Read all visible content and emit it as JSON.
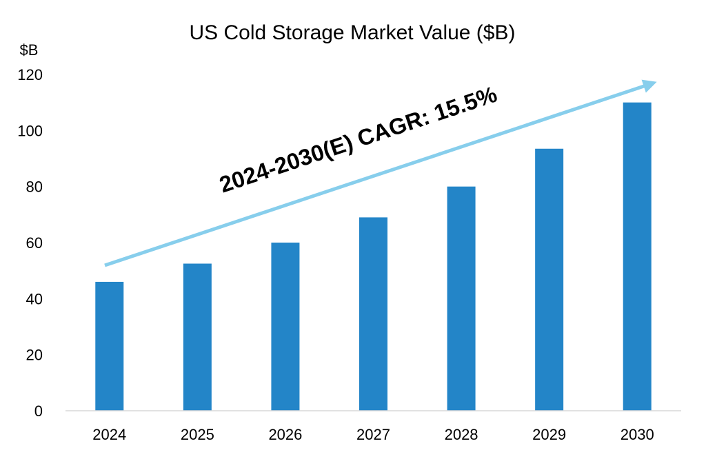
{
  "chart_data": {
    "type": "bar",
    "title": "US Cold Storage Market Value ($B)",
    "ylabel": "$B",
    "xlabel": "",
    "categories": [
      "2024",
      "2025",
      "2026",
      "2027",
      "2028",
      "2029",
      "2030"
    ],
    "values": [
      46,
      52.5,
      60,
      69,
      80,
      93.5,
      110
    ],
    "ylim": [
      0,
      120
    ],
    "yticks": [
      "0",
      "20",
      "40",
      "60",
      "80",
      "100",
      "120"
    ],
    "grid": false,
    "legend": "none",
    "bar_color": "#2385c8",
    "annotation": {
      "text": "2024-2030(E) CAGR: 15.5%",
      "arrow_color": "#87ceec"
    }
  }
}
